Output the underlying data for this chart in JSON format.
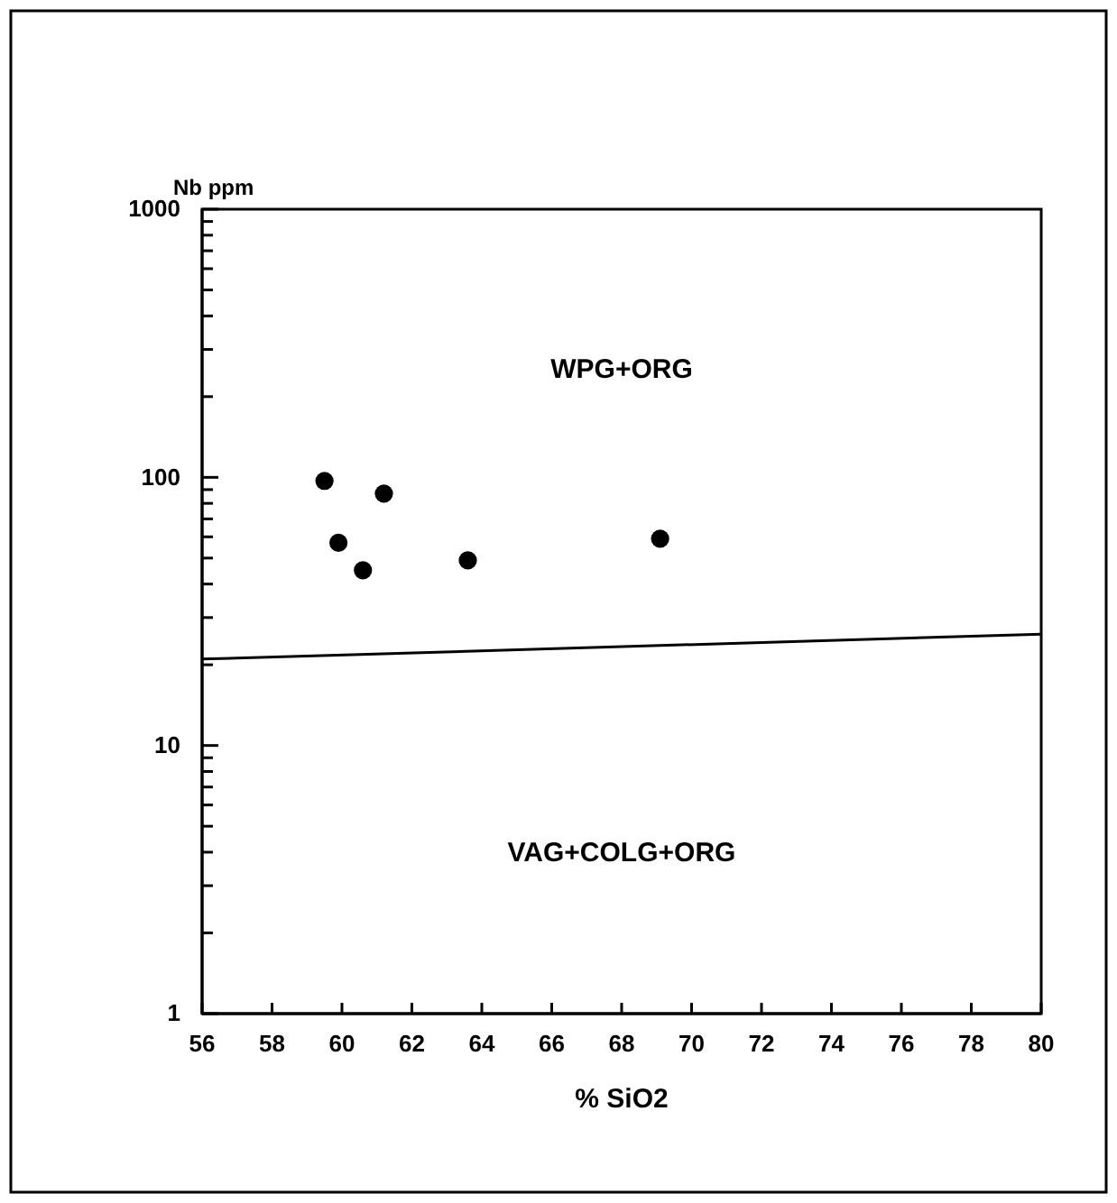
{
  "chart_data": {
    "type": "scatter",
    "ylabel": "Nb ppm",
    "xlabel": "% SiO2",
    "log": "y",
    "xlim": [
      56,
      80
    ],
    "ylim": [
      1,
      1000
    ],
    "xticks": [
      56,
      58,
      60,
      62,
      64,
      66,
      68,
      70,
      72,
      74,
      76,
      78,
      80
    ],
    "yticks": [
      1,
      {
        "value": 2,
        "label": null
      },
      {
        "value": 3,
        "label": null
      },
      {
        "value": 4,
        "label": null
      },
      {
        "value": 5,
        "label": null
      },
      {
        "value": 6,
        "label": null
      },
      {
        "value": 7,
        "label": null
      },
      {
        "value": 8,
        "label": null
      },
      {
        "value": 9,
        "label": null
      },
      10,
      {
        "value": 20,
        "label": null
      },
      {
        "value": 30,
        "label": null
      },
      {
        "value": 40,
        "label": null
      },
      {
        "value": 50,
        "label": null
      },
      {
        "value": 60,
        "label": null
      },
      {
        "value": 70,
        "label": null
      },
      {
        "value": 80,
        "label": null
      },
      {
        "value": 90,
        "label": null
      },
      100,
      {
        "value": 200,
        "label": null
      },
      {
        "value": 300,
        "label": null
      },
      {
        "value": 400,
        "label": null
      },
      {
        "value": 500,
        "label": null
      },
      {
        "value": 600,
        "label": null
      },
      {
        "value": 700,
        "label": null
      },
      {
        "value": 800,
        "label": null
      },
      {
        "value": 900,
        "label": null
      },
      1000
    ],
    "grid": false,
    "marker": "circle",
    "series": [
      {
        "color": "#000000",
        "x": [
          59.5,
          59.9,
          60.6,
          61.2,
          63.6,
          69.1
        ],
        "values": [
          97,
          57,
          45,
          87,
          49,
          59
        ]
      },
      {
        "type": "line",
        "color": "#000000",
        "marker": "none",
        "line_style": "solid",
        "x": [
          56,
          80
        ],
        "values": [
          21,
          26
        ]
      }
    ],
    "annotations": [
      "WPG+ORG",
      "VAG+COLG+ORG"
    ]
  }
}
